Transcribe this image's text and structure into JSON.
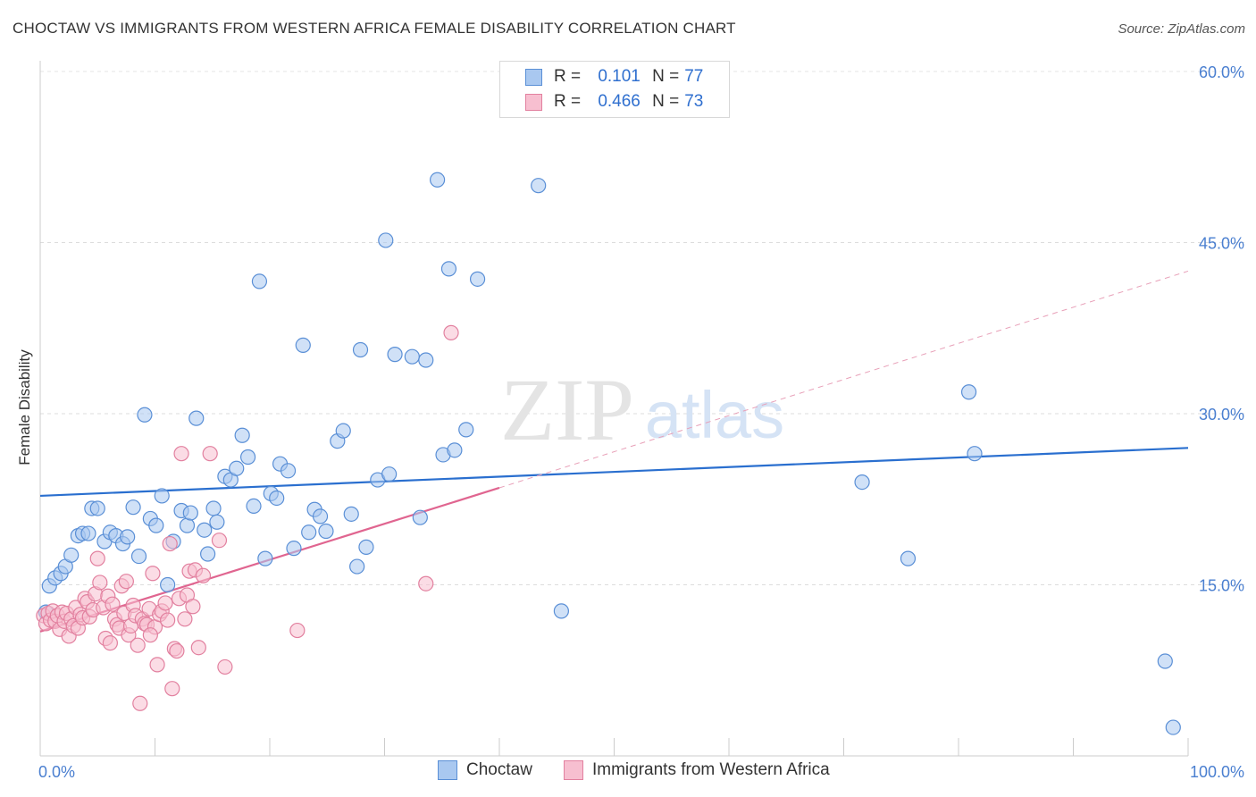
{
  "title": "CHOCTAW VS IMMIGRANTS FROM WESTERN AFRICA FEMALE DISABILITY CORRELATION CHART",
  "source": "Source: ZipAtlas.com",
  "watermark": {
    "zip": "ZIP",
    "atlas": "atlas"
  },
  "legend": {
    "rows": [
      {
        "r_label": "R =",
        "r_value": "0.101",
        "n_label": "N =",
        "n_value": "77",
        "fill": "#a9c8f0",
        "stroke": "#5a8fd6",
        "text_color": "#2f6fcf"
      },
      {
        "r_label": "R =",
        "r_value": "0.466",
        "n_label": "N =",
        "n_value": "73",
        "fill": "#f7bfd0",
        "stroke": "#e2809f",
        "text_color": "#2f6fcf"
      }
    ]
  },
  "chart_data": {
    "type": "scatter",
    "title": "CHOCTAW VS IMMIGRANTS FROM WESTERN AFRICA FEMALE DISABILITY CORRELATION CHART",
    "xlabel": "",
    "ylabel": "Female Disability",
    "xlim": [
      0,
      100
    ],
    "ylim": [
      0,
      60
    ],
    "x_tick_labels": [
      "0.0%",
      "100.0%"
    ],
    "y_tick_labels": [
      "15.0%",
      "30.0%",
      "45.0%",
      "60.0%"
    ],
    "y_ticks": [
      15,
      30,
      45,
      60
    ],
    "grid": "horizontal dashed",
    "legend_position": "top-center",
    "series": [
      {
        "name": "Choctaw",
        "color": "#5a8fd6",
        "fill": "#a9c8f0",
        "trend": {
          "x": [
            0,
            100
          ],
          "y": [
            22.8,
            27.0
          ],
          "style": "solid"
        },
        "points": [
          [
            0.8,
            14.9
          ],
          [
            1.3,
            15.6
          ],
          [
            1.8,
            16.0
          ],
          [
            2.2,
            16.6
          ],
          [
            2.7,
            17.6
          ],
          [
            3.3,
            19.3
          ],
          [
            3.7,
            19.5
          ],
          [
            4.2,
            19.5
          ],
          [
            4.5,
            21.7
          ],
          [
            5.0,
            21.7
          ],
          [
            5.6,
            18.8
          ],
          [
            6.1,
            19.6
          ],
          [
            6.6,
            19.3
          ],
          [
            7.2,
            18.6
          ],
          [
            7.6,
            19.2
          ],
          [
            8.1,
            21.8
          ],
          [
            8.6,
            17.5
          ],
          [
            9.1,
            29.9
          ],
          [
            9.6,
            20.8
          ],
          [
            10.1,
            20.2
          ],
          [
            10.6,
            22.8
          ],
          [
            11.1,
            15.0
          ],
          [
            11.6,
            18.8
          ],
          [
            12.3,
            21.5
          ],
          [
            12.8,
            20.2
          ],
          [
            13.1,
            21.3
          ],
          [
            13.6,
            29.6
          ],
          [
            14.3,
            19.8
          ],
          [
            14.6,
            17.7
          ],
          [
            15.1,
            21.7
          ],
          [
            15.4,
            20.5
          ],
          [
            16.1,
            24.5
          ],
          [
            16.6,
            24.2
          ],
          [
            17.1,
            25.2
          ],
          [
            17.6,
            28.1
          ],
          [
            18.1,
            26.2
          ],
          [
            18.6,
            21.9
          ],
          [
            19.1,
            41.6
          ],
          [
            19.6,
            17.3
          ],
          [
            20.1,
            23.0
          ],
          [
            20.6,
            22.6
          ],
          [
            20.9,
            25.6
          ],
          [
            21.6,
            25.0
          ],
          [
            22.1,
            18.2
          ],
          [
            22.9,
            36.0
          ],
          [
            23.4,
            19.6
          ],
          [
            23.9,
            21.6
          ],
          [
            24.4,
            21.0
          ],
          [
            24.9,
            19.7
          ],
          [
            25.9,
            27.6
          ],
          [
            26.4,
            28.5
          ],
          [
            27.1,
            21.2
          ],
          [
            27.6,
            16.6
          ],
          [
            27.9,
            35.6
          ],
          [
            28.4,
            18.3
          ],
          [
            29.4,
            24.2
          ],
          [
            30.1,
            45.2
          ],
          [
            30.4,
            24.7
          ],
          [
            30.9,
            35.2
          ],
          [
            32.4,
            35.0
          ],
          [
            33.1,
            20.9
          ],
          [
            33.6,
            34.7
          ],
          [
            34.6,
            50.5
          ],
          [
            35.1,
            26.4
          ],
          [
            35.6,
            42.7
          ],
          [
            36.1,
            26.8
          ],
          [
            37.1,
            28.6
          ],
          [
            38.1,
            41.8
          ],
          [
            43.4,
            50.0
          ],
          [
            45.4,
            12.7
          ],
          [
            71.6,
            24.0
          ],
          [
            75.6,
            17.3
          ],
          [
            80.9,
            31.9
          ],
          [
            81.4,
            26.5
          ],
          [
            98.0,
            8.3
          ],
          [
            98.7,
            2.5
          ],
          [
            0.5,
            12.6
          ]
        ]
      },
      {
        "name": "Immigrants from Western Africa",
        "color": "#e2809f",
        "fill": "#f7bfd0",
        "trend": {
          "x": [
            0,
            40
          ],
          "y": [
            10.9,
            23.5
          ],
          "style": "solid",
          "extension": {
            "x": [
              40,
              100
            ],
            "y": [
              23.5,
              42.5
            ],
            "style": "dashed"
          }
        },
        "points": [
          [
            0.3,
            12.3
          ],
          [
            0.5,
            11.6
          ],
          [
            0.7,
            12.5
          ],
          [
            0.9,
            11.9
          ],
          [
            1.1,
            12.7
          ],
          [
            1.3,
            11.8
          ],
          [
            1.5,
            12.3
          ],
          [
            1.7,
            11.1
          ],
          [
            1.9,
            12.6
          ],
          [
            2.1,
            11.8
          ],
          [
            2.3,
            12.5
          ],
          [
            2.5,
            10.5
          ],
          [
            2.7,
            12.0
          ],
          [
            2.9,
            11.4
          ],
          [
            3.1,
            13.0
          ],
          [
            3.3,
            11.2
          ],
          [
            3.5,
            12.4
          ],
          [
            3.7,
            12.1
          ],
          [
            3.9,
            13.8
          ],
          [
            4.1,
            13.5
          ],
          [
            4.3,
            12.2
          ],
          [
            4.6,
            12.8
          ],
          [
            4.8,
            14.2
          ],
          [
            5.0,
            17.3
          ],
          [
            5.2,
            15.2
          ],
          [
            5.5,
            13.0
          ],
          [
            5.7,
            10.3
          ],
          [
            5.9,
            14.0
          ],
          [
            6.1,
            9.9
          ],
          [
            6.3,
            13.3
          ],
          [
            6.5,
            12.0
          ],
          [
            6.7,
            11.5
          ],
          [
            6.9,
            11.2
          ],
          [
            7.1,
            14.9
          ],
          [
            7.3,
            12.5
          ],
          [
            7.5,
            15.3
          ],
          [
            7.7,
            10.6
          ],
          [
            7.9,
            11.4
          ],
          [
            8.1,
            13.2
          ],
          [
            8.3,
            12.3
          ],
          [
            8.5,
            9.7
          ],
          [
            8.7,
            4.6
          ],
          [
            8.9,
            12.0
          ],
          [
            9.1,
            11.6
          ],
          [
            9.3,
            11.5
          ],
          [
            9.5,
            12.9
          ],
          [
            9.8,
            16.0
          ],
          [
            10.0,
            11.3
          ],
          [
            10.2,
            8.0
          ],
          [
            10.4,
            12.4
          ],
          [
            10.6,
            12.7
          ],
          [
            10.9,
            13.4
          ],
          [
            11.1,
            11.9
          ],
          [
            11.3,
            18.6
          ],
          [
            11.5,
            5.9
          ],
          [
            11.7,
            9.4
          ],
          [
            11.9,
            9.2
          ],
          [
            12.1,
            13.8
          ],
          [
            12.3,
            26.5
          ],
          [
            12.6,
            12.0
          ],
          [
            12.8,
            14.1
          ],
          [
            13.0,
            16.2
          ],
          [
            13.3,
            13.1
          ],
          [
            13.5,
            16.3
          ],
          [
            13.8,
            9.5
          ],
          [
            14.2,
            15.8
          ],
          [
            14.8,
            26.5
          ],
          [
            15.6,
            18.9
          ],
          [
            16.1,
            7.8
          ],
          [
            22.4,
            11.0
          ],
          [
            33.6,
            15.1
          ],
          [
            35.8,
            37.1
          ],
          [
            9.6,
            10.6
          ]
        ]
      }
    ]
  },
  "bottom_legend": [
    {
      "label": "Choctaw",
      "fill": "#a9c8f0",
      "stroke": "#5a8fd6"
    },
    {
      "label": "Immigrants from Western Africa",
      "fill": "#f7bfd0",
      "stroke": "#e2809f"
    }
  ]
}
